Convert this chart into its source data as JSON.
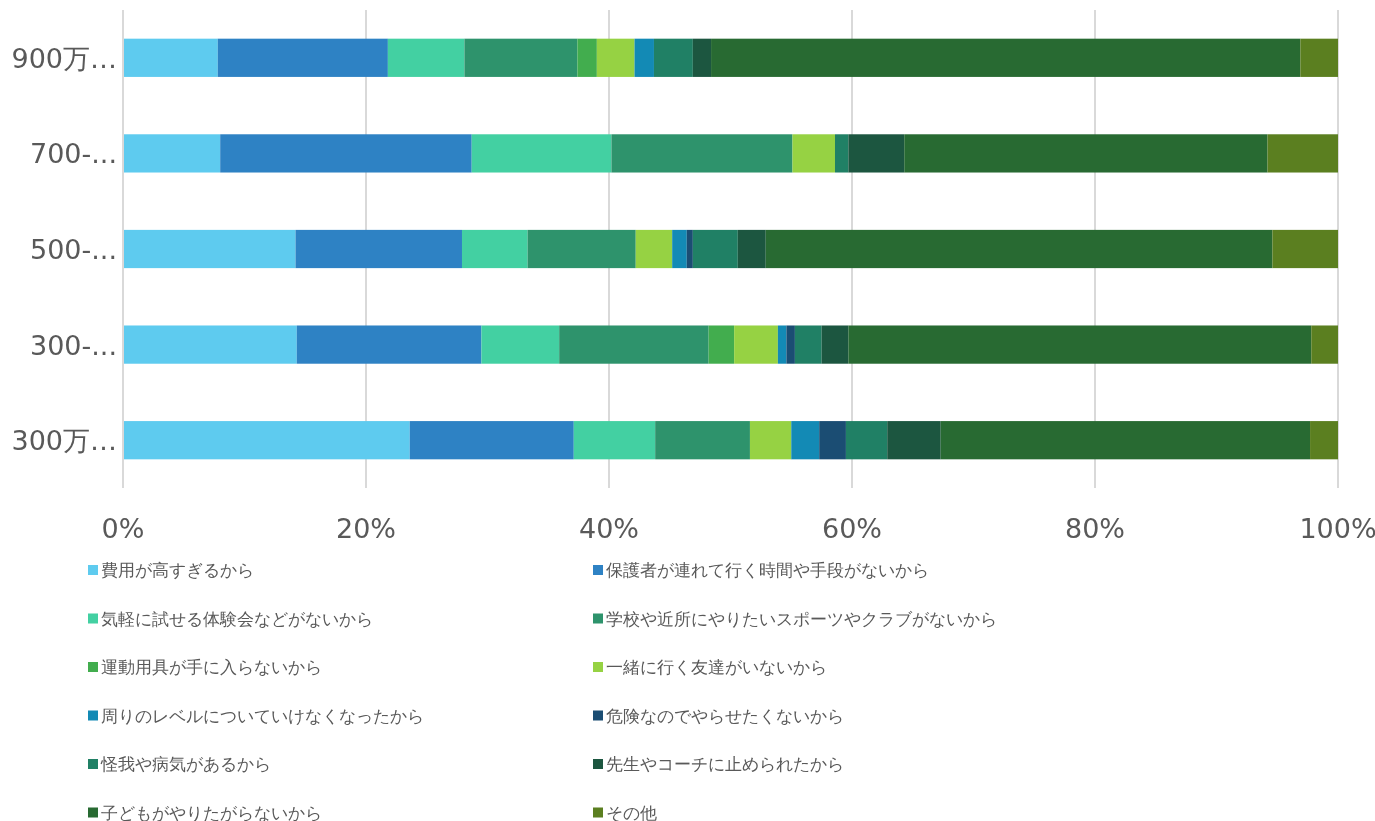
{
  "chart_data": {
    "type": "bar",
    "orientation": "horizontal",
    "stacked": true,
    "categories": [
      "900万…",
      "700-...",
      "500-...",
      "300-...",
      "300万…"
    ],
    "xlim": [
      0,
      100
    ],
    "xticks": [
      {
        "value": 0,
        "label": "0%"
      },
      {
        "value": 20,
        "label": "20%"
      },
      {
        "value": 40,
        "label": "40%"
      },
      {
        "value": 60,
        "label": "60%"
      },
      {
        "value": 80,
        "label": "80%"
      },
      {
        "value": 100,
        "label": "100%"
      }
    ],
    "grid": "x",
    "legend": "bottom",
    "series": [
      {
        "name": "費用が高すぎるから",
        "color": "#5ecbef",
        "values": [
          7.8,
          8.0,
          14.2,
          14.3,
          23.6
        ]
      },
      {
        "name": "保護者が連れて行く時間や手段がないから",
        "color": "#2e82c4",
        "values": [
          14.0,
          20.7,
          13.7,
          15.2,
          13.5
        ]
      },
      {
        "name": "気軽に試せる体験会などがないから",
        "color": "#43d0a2",
        "values": [
          6.3,
          11.5,
          5.4,
          6.4,
          6.7
        ]
      },
      {
        "name": "学校や近所にやりたいスポーツやクラブがないから",
        "color": "#2e936c",
        "values": [
          9.3,
          14.9,
          8.9,
          12.3,
          7.8
        ]
      },
      {
        "name": "運動用具が手に入らないから",
        "color": "#42ad4e",
        "values": [
          1.6,
          0,
          0,
          2.1,
          0
        ]
      },
      {
        "name": "一緒に行く友達がいないから",
        "color": "#96d243",
        "values": [
          3.1,
          3.5,
          3.0,
          3.6,
          3.4
        ]
      },
      {
        "name": "周りのレベルについていけなくなったから",
        "color": "#138ab5",
        "values": [
          1.6,
          0,
          1.2,
          0.7,
          2.3
        ]
      },
      {
        "name": "危険なのでやらせたくないから",
        "color": "#1b4d73",
        "values": [
          0,
          0,
          0.5,
          0.7,
          2.2
        ]
      },
      {
        "name": "怪我や病気があるから",
        "color": "#208065",
        "values": [
          3.2,
          1.1,
          3.7,
          2.2,
          3.4
        ]
      },
      {
        "name": "先生やコーチに止められたから",
        "color": "#1c5640",
        "values": [
          1.5,
          4.6,
          2.3,
          2.2,
          4.4
        ]
      },
      {
        "name": "子どもがやりたがらないから",
        "color": "#286a32",
        "values": [
          48.5,
          29.9,
          41.7,
          38.1,
          30.4
        ]
      },
      {
        "name": "その他",
        "color": "#5b7f20",
        "values": [
          3.1,
          5.8,
          5.4,
          2.2,
          2.3
        ]
      }
    ]
  }
}
